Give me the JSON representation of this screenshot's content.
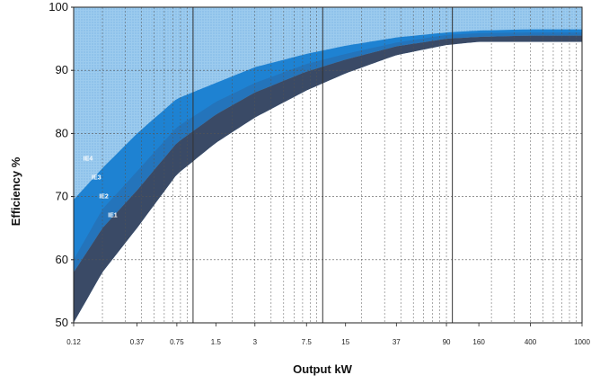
{
  "chart_data": {
    "type": "area",
    "title": "",
    "xlabel": "Output kW",
    "ylabel": "Efficiency %",
    "x_scale": "log",
    "xlim": [
      0.12,
      1000
    ],
    "ylim": [
      50,
      100
    ],
    "x_ticks": [
      {
        "value": 0.12,
        "label": "0.12"
      },
      {
        "value": 0.37,
        "label": "0.37"
      },
      {
        "value": 0.75,
        "label": "0.75"
      },
      {
        "value": 1.5,
        "label": "1.5"
      },
      {
        "value": 3,
        "label": "3"
      },
      {
        "value": 7.5,
        "label": "7.5"
      },
      {
        "value": 15,
        "label": "15"
      },
      {
        "value": 37,
        "label": "37"
      },
      {
        "value": 90,
        "label": "90"
      },
      {
        "value": 160,
        "label": "160"
      },
      {
        "value": 400,
        "label": "400"
      },
      {
        "value": 1000,
        "label": "1000"
      }
    ],
    "y_ticks": [
      50,
      60,
      70,
      80,
      90,
      100
    ],
    "major_x_gridlines": [
      1,
      10,
      100
    ],
    "grid": true,
    "x": [
      0.12,
      0.2,
      0.37,
      0.75,
      1.5,
      3,
      7.5,
      15,
      37,
      90,
      160,
      400,
      1000
    ],
    "series": [
      {
        "name": "IE4",
        "values": [
          69.5,
          74.5,
          80.0,
          85.5,
          88.0,
          90.5,
          92.6,
          93.9,
          95.2,
          96.0,
          96.3,
          96.5,
          96.5
        ]
      },
      {
        "name": "IE3",
        "values": [
          60.0,
          68.0,
          74.0,
          81.0,
          85.0,
          88.0,
          91.0,
          92.6,
          94.4,
          95.6,
          95.9,
          96.0,
          96.0
        ]
      },
      {
        "name": "IE2",
        "values": [
          58.0,
          65.0,
          71.0,
          78.5,
          83.0,
          86.5,
          89.8,
          91.7,
          93.8,
          95.0,
          95.3,
          95.5,
          95.5
        ]
      },
      {
        "name": "IE1",
        "values": [
          50.0,
          58.0,
          65.0,
          73.5,
          78.5,
          82.5,
          86.8,
          89.5,
          92.4,
          94.0,
          94.5,
          94.5,
          94.5
        ]
      }
    ],
    "band_labels": [
      "IE4",
      "IE3",
      "IE2",
      "IE1"
    ],
    "colors": {
      "background_top": "#8cc0e8",
      "band_ie4": "#1e82d2",
      "band_ie2": "#2a6aa8",
      "band_ie1": "#3a4a66",
      "below": "#ffffff",
      "grid": "#555555"
    }
  }
}
